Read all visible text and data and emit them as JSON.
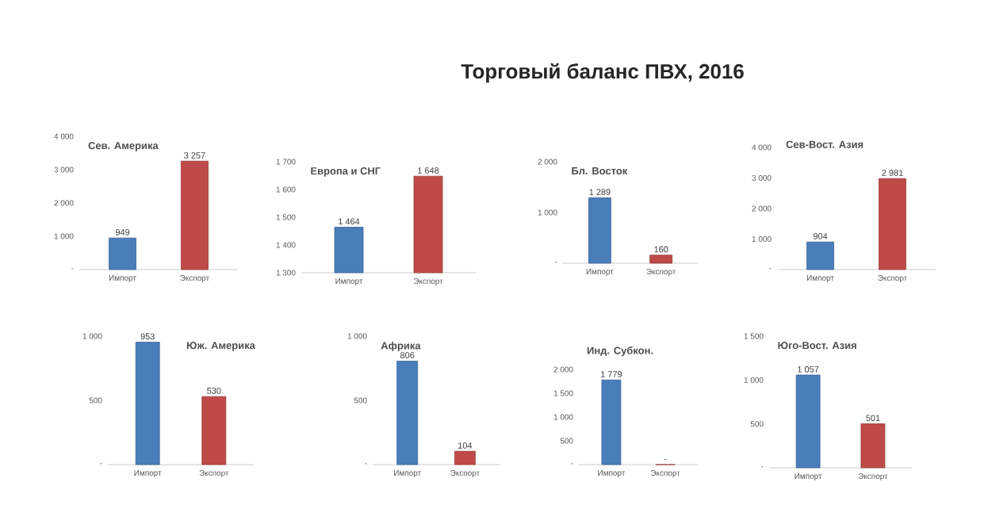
{
  "chart_data": [
    {
      "type": "bar",
      "title": "Сев. Америка",
      "annotations": [
        "Торговый баланс ПВХ, 2016"
      ],
      "categories": [
        "Импорт",
        "Экспорт"
      ],
      "values": [
        949,
        3257
      ],
      "colors": [
        "#4a7ebb",
        "#be4b48"
      ],
      "ylim": [
        0,
        4000
      ],
      "yticks": [
        {
          "value": 0,
          "label": "-"
        },
        {
          "value": 1000,
          "label": "1 000"
        },
        {
          "value": 2000,
          "label": "2 000"
        },
        {
          "value": 3000,
          "label": "3 000"
        },
        {
          "value": 4000,
          "label": "4 000"
        }
      ],
      "value_labels": [
        "949",
        "3 257"
      ]
    },
    {
      "type": "bar",
      "title": "Европа и СНГ",
      "categories": [
        "Импорт",
        "Экспорт"
      ],
      "values": [
        1464,
        1648
      ],
      "colors": [
        "#4a7ebb",
        "#be4b48"
      ],
      "ylim": [
        1300,
        1700
      ],
      "yticks": [
        {
          "value": 1300,
          "label": "1 300"
        },
        {
          "value": 1400,
          "label": "1 400"
        },
        {
          "value": 1500,
          "label": "1 500"
        },
        {
          "value": 1600,
          "label": "1 600"
        },
        {
          "value": 1700,
          "label": "1 700"
        }
      ],
      "value_labels": [
        "1 464",
        "1 648"
      ]
    },
    {
      "type": "bar",
      "title": "Бл. Восток",
      "categories": [
        "Импорт",
        "Экспорт"
      ],
      "values": [
        1289,
        160
      ],
      "colors": [
        "#4a7ebb",
        "#be4b48"
      ],
      "ylim": [
        0,
        2000
      ],
      "yticks": [
        {
          "value": 0,
          "label": "-"
        },
        {
          "value": 1000,
          "label": "1 000"
        },
        {
          "value": 2000,
          "label": "2 000"
        }
      ],
      "value_labels": [
        "1 289",
        "160"
      ]
    },
    {
      "type": "bar",
      "title": "Сев-Вост. Азия",
      "categories": [
        "Импорт",
        "Экспорт"
      ],
      "values": [
        904,
        2981
      ],
      "colors": [
        "#4a7ebb",
        "#be4b48"
      ],
      "ylim": [
        0,
        4000
      ],
      "yticks": [
        {
          "value": 0,
          "label": "-"
        },
        {
          "value": 1000,
          "label": "1 000"
        },
        {
          "value": 2000,
          "label": "2 000"
        },
        {
          "value": 3000,
          "label": "3 000"
        },
        {
          "value": 4000,
          "label": "4 000"
        }
      ],
      "value_labels": [
        "904",
        "2 981"
      ]
    },
    {
      "type": "bar",
      "title": "Юж. Америка",
      "categories": [
        "Импорт",
        "Экспорт"
      ],
      "values": [
        953,
        530
      ],
      "colors": [
        "#4a7ebb",
        "#be4b48"
      ],
      "ylim": [
        0,
        1000
      ],
      "yticks": [
        {
          "value": 0,
          "label": "-"
        },
        500,
        {
          "value": 1000,
          "label": "1 000"
        }
      ],
      "value_labels": [
        "953",
        "530"
      ]
    },
    {
      "type": "bar",
      "title": "Африка",
      "categories": [
        "Импорт",
        "Экспорт"
      ],
      "values": [
        806,
        104
      ],
      "colors": [
        "#4a7ebb",
        "#be4b48"
      ],
      "ylim": [
        0,
        1000
      ],
      "yticks": [
        {
          "value": 0,
          "label": "-"
        },
        500,
        {
          "value": 1000,
          "label": "1 000"
        }
      ],
      "value_labels": [
        "806",
        "104"
      ]
    },
    {
      "type": "bar",
      "title": "Инд. Субкон.",
      "categories": [
        "Импорт",
        "Экспорт"
      ],
      "values": [
        1779,
        0
      ],
      "colors": [
        "#4a7ebb",
        "#be4b48"
      ],
      "ylim": [
        0,
        2000
      ],
      "yticks": [
        {
          "value": 0,
          "label": "-"
        },
        500,
        {
          "value": 1000,
          "label": "1 000"
        },
        {
          "value": 1500,
          "label": "1 500"
        },
        {
          "value": 2000,
          "label": "2 000"
        }
      ],
      "value_labels": [
        "1 779",
        "-"
      ]
    },
    {
      "type": "bar",
      "title": "Юго-Вост. Азия",
      "categories": [
        "Импорт",
        "Экспорт"
      ],
      "values": [
        1057,
        501
      ],
      "colors": [
        "#4a7ebb",
        "#be4b48"
      ],
      "ylim": [
        0,
        1500
      ],
      "yticks": [
        {
          "value": 0,
          "label": "-"
        },
        500,
        {
          "value": 1000,
          "label": "1 000"
        },
        {
          "value": 1500,
          "label": "1 500"
        }
      ],
      "value_labels": [
        "1 057",
        "501"
      ]
    }
  ]
}
